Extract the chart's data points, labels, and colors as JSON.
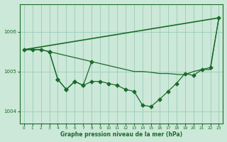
{
  "bg_color": "#cce8d8",
  "grid_color": "#99ccbb",
  "line_color": "#1a6b2a",
  "title": "Graphe pression niveau de la mer (hPa)",
  "xlim": [
    -0.5,
    23.5
  ],
  "ylim": [
    1003.7,
    1006.7
  ],
  "yticks": [
    1004,
    1005,
    1006
  ],
  "xtick_labels": [
    "0",
    "1",
    "2",
    "3",
    "4",
    "5",
    "6",
    "7",
    "8",
    "9",
    "10",
    "11",
    "12",
    "13",
    "14",
    "15",
    "16",
    "17",
    "18",
    "19",
    "20",
    "21",
    "22",
    "23"
  ],
  "series_diag": {
    "x": [
      0,
      23
    ],
    "y": [
      1005.55,
      1006.35
    ],
    "style": "-",
    "linewidth": 1.2
  },
  "series_flat": {
    "x": [
      0,
      1,
      2,
      3,
      4,
      5,
      6,
      7,
      8,
      9,
      10,
      11,
      12,
      13,
      14,
      15,
      16,
      17,
      18,
      19,
      20,
      21,
      22,
      23
    ],
    "y": [
      1005.55,
      1005.55,
      1005.55,
      1005.5,
      1005.45,
      1005.4,
      1005.35,
      1005.3,
      1005.25,
      1005.2,
      1005.15,
      1005.1,
      1005.05,
      1005.0,
      1005.0,
      1004.98,
      1004.95,
      1004.95,
      1004.93,
      1004.92,
      1005.0,
      1005.05,
      1005.05,
      1006.35
    ],
    "style": "-",
    "linewidth": 0.9
  },
  "series_markers": {
    "x": [
      0,
      1,
      2,
      3,
      4,
      5,
      6,
      7,
      8,
      9,
      10,
      11,
      12,
      13,
      14,
      15,
      16,
      17,
      18,
      19,
      20,
      21,
      22,
      23
    ],
    "y": [
      1005.55,
      1005.55,
      1005.55,
      1005.5,
      1004.8,
      1004.55,
      1004.75,
      1004.65,
      1004.75,
      1004.75,
      1004.7,
      1004.65,
      1004.55,
      1004.5,
      1004.15,
      1004.12,
      1004.3,
      1004.5,
      1004.7,
      1004.95,
      1004.9,
      1005.05,
      1005.1,
      1006.35
    ],
    "style": "-",
    "linewidth": 0.9,
    "marker": "D",
    "markersize": 2.5
  },
  "series_loop": {
    "x": [
      3,
      4,
      5,
      6,
      7,
      8
    ],
    "y": [
      1005.5,
      1004.8,
      1004.55,
      1004.75,
      1004.65,
      1005.25
    ],
    "style": "-",
    "linewidth": 0.9,
    "marker": "D",
    "markersize": 2.5
  }
}
